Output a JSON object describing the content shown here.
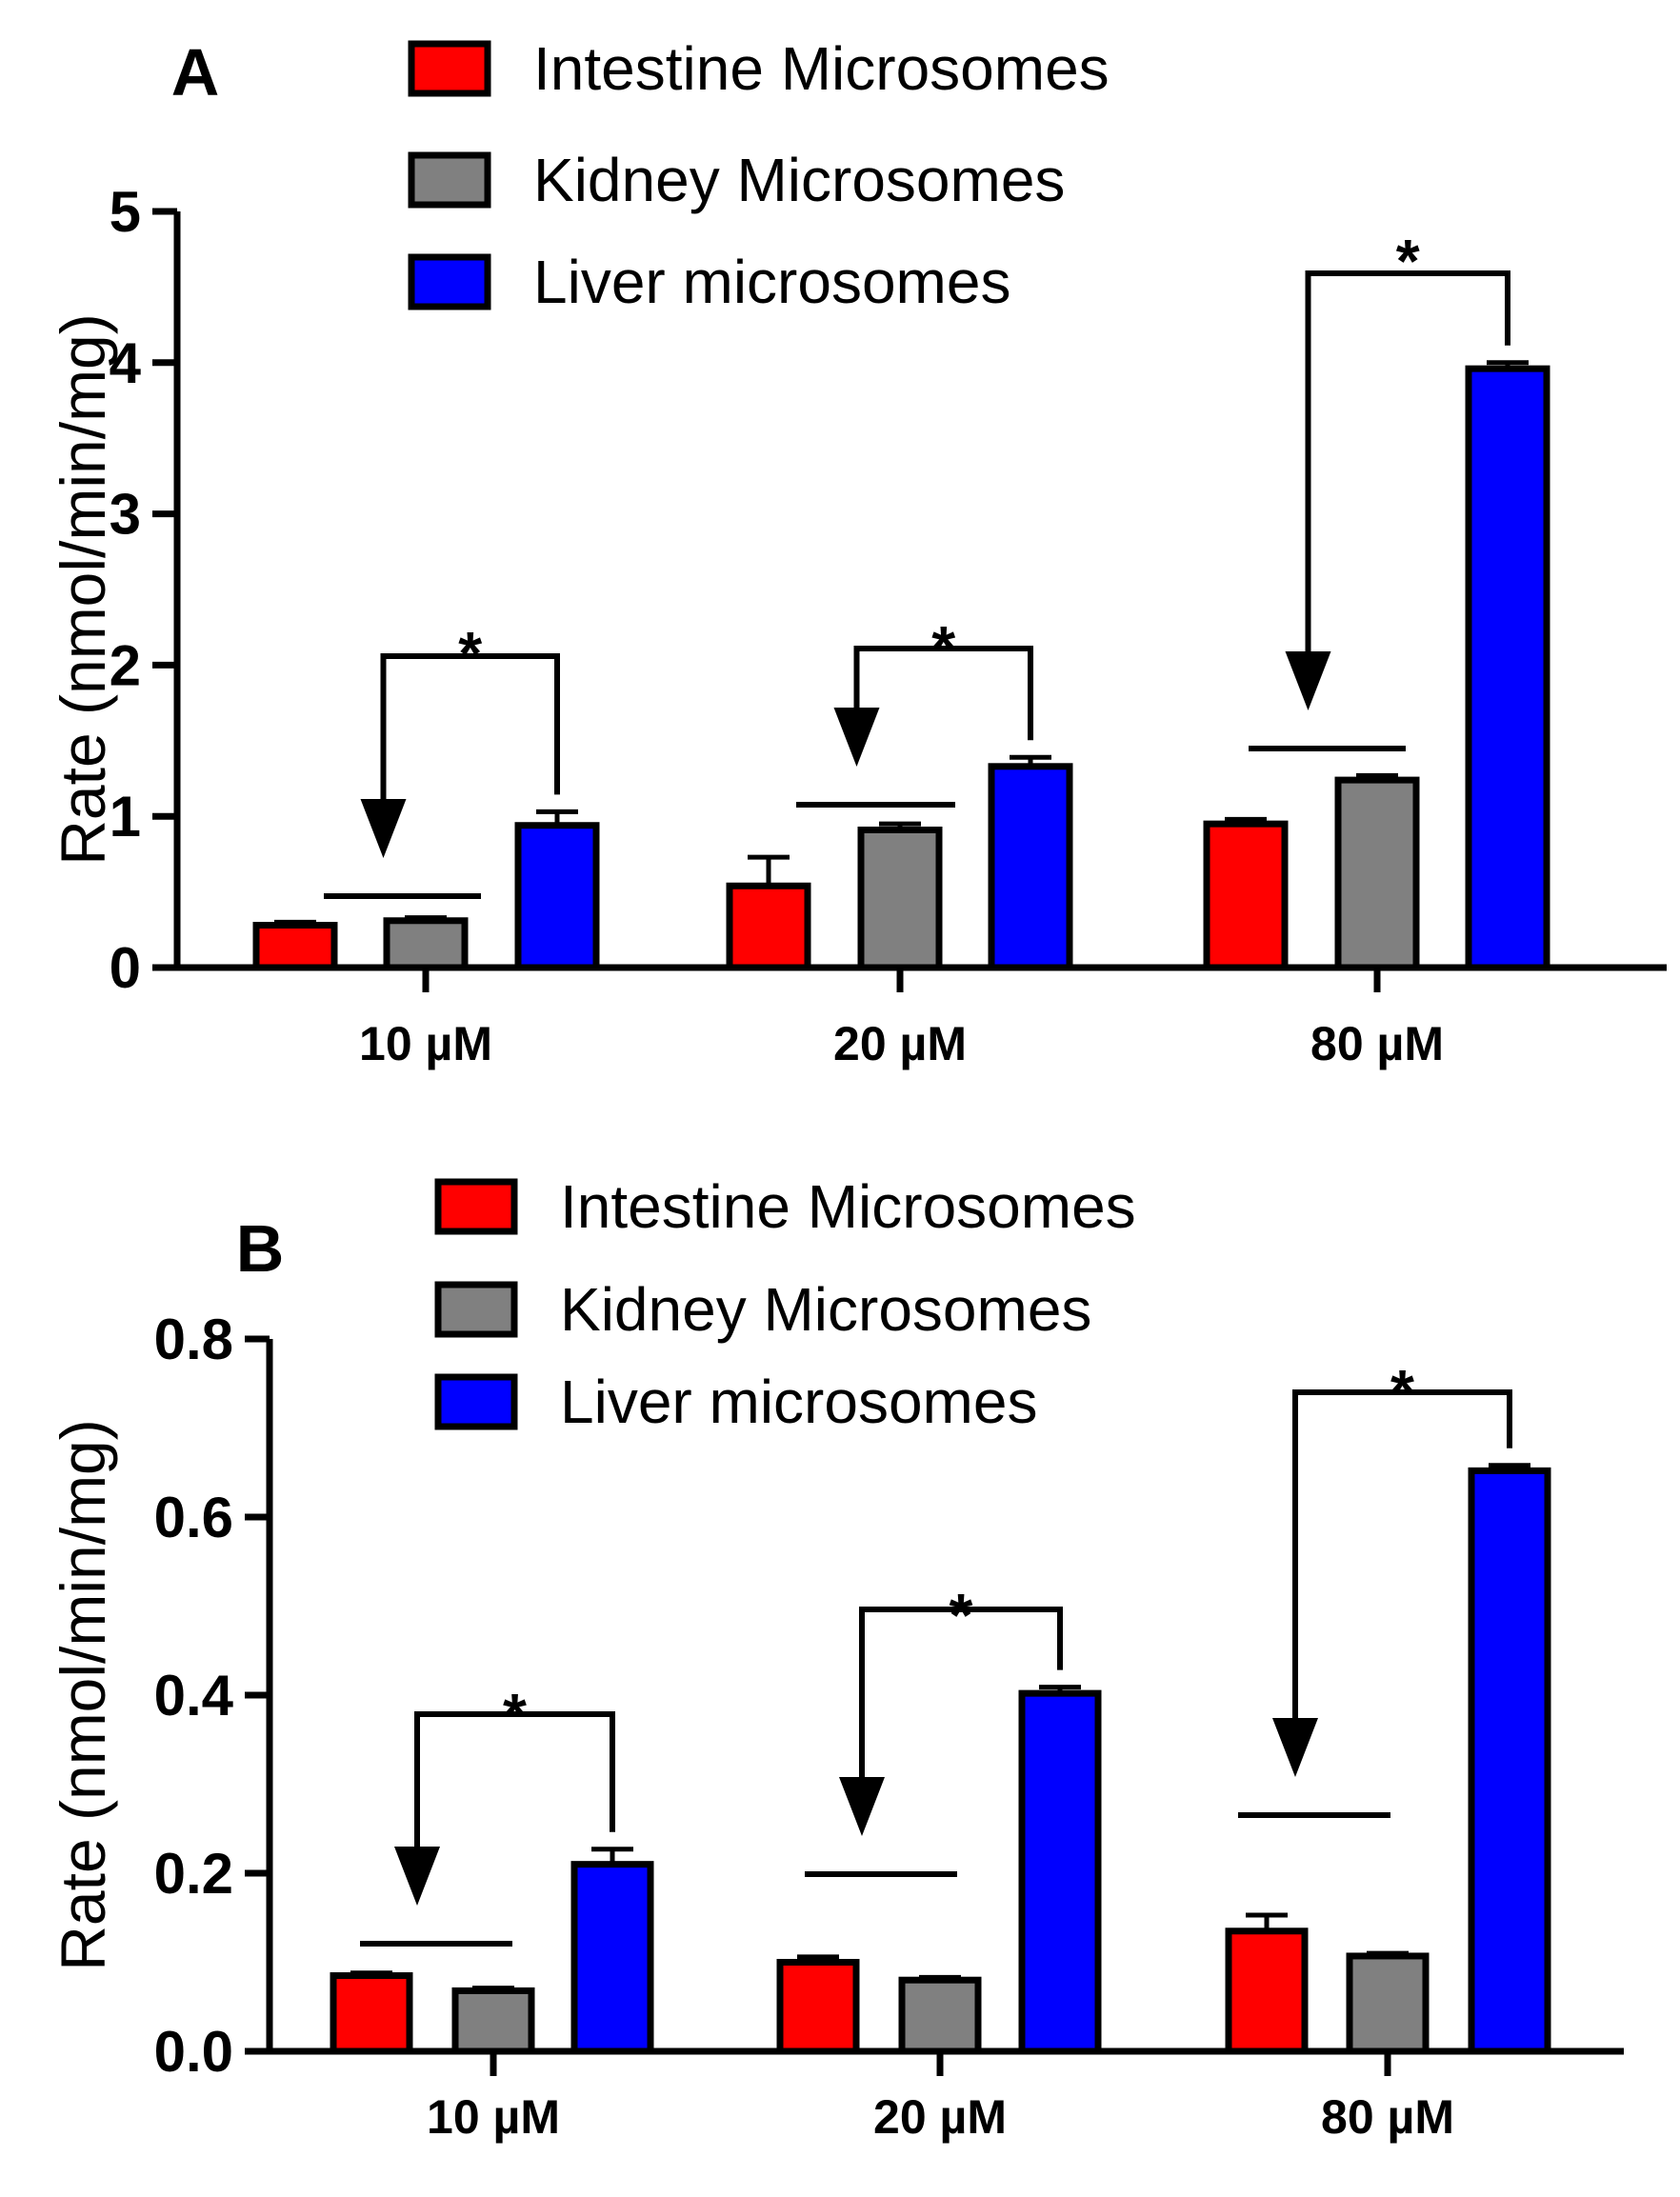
{
  "figure": {
    "panels": [
      {
        "letter": "A",
        "legend": [
          {
            "label": "Intestine Microsomes",
            "color": "#ff0000"
          },
          {
            "label": "Kidney Microsomes",
            "color": "#808080"
          },
          {
            "label": "Liver microsomes",
            "color": "#0000ff"
          }
        ],
        "ylabel": "Rate (nmol/min/mg)",
        "yticks": [
          {
            "value": 0,
            "label": "0"
          },
          {
            "value": 1,
            "label": "1"
          },
          {
            "value": 2,
            "label": "2"
          },
          {
            "value": 3,
            "label": "3"
          },
          {
            "value": 4,
            "label": "4"
          },
          {
            "value": 5,
            "label": "5"
          }
        ],
        "significance": [
          "*",
          "*",
          "*"
        ]
      },
      {
        "letter": "B",
        "legend": [
          {
            "label": "Intestine Microsomes",
            "color": "#ff0000"
          },
          {
            "label": "Kidney Microsomes",
            "color": "#808080"
          },
          {
            "label": "Liver microsomes",
            "color": "#0000ff"
          }
        ],
        "ylabel": "Rate (nmol/min/mg)",
        "yticks": [
          {
            "value": 0,
            "label": "0.0"
          },
          {
            "value": 0.2,
            "label": "0.2"
          },
          {
            "value": 0.4,
            "label": "0.4"
          },
          {
            "value": 0.6,
            "label": "0.6"
          },
          {
            "value": 0.8,
            "label": "0.8"
          }
        ],
        "significance": [
          "*",
          "*",
          "*"
        ]
      }
    ]
  },
  "chart_data": [
    {
      "type": "bar",
      "panel": "A",
      "categories": [
        "10 µM",
        "20 µM",
        "80 µM"
      ],
      "ylabel": "Rate (nmol/min/mg)",
      "ylim": [
        0,
        5
      ],
      "grid": false,
      "legend_position": "top",
      "series": [
        {
          "name": "Intestine Microsomes",
          "values": [
            0.28,
            0.54,
            0.95
          ],
          "error": [
            0.02,
            0.19,
            0.03
          ]
        },
        {
          "name": "Kidney Microsomes",
          "values": [
            0.31,
            0.91,
            1.24
          ],
          "error": [
            0.02,
            0.04,
            0.03
          ]
        },
        {
          "name": "Liver microsomes",
          "values": [
            0.94,
            1.33,
            3.96
          ],
          "error": [
            0.09,
            0.06,
            0.04
          ]
        }
      ]
    },
    {
      "type": "bar",
      "panel": "B",
      "categories": [
        "10 µM",
        "20 µM",
        "80 µM"
      ],
      "ylabel": "Rate (nmol/min/mg)",
      "ylim": [
        0,
        0.8
      ],
      "grid": false,
      "legend_position": "top",
      "series": [
        {
          "name": "Intestine Microsomes",
          "values": [
            0.085,
            0.1,
            0.135
          ],
          "error": [
            0.003,
            0.006,
            0.018
          ]
        },
        {
          "name": "Kidney Microsomes",
          "values": [
            0.068,
            0.08,
            0.107
          ],
          "error": [
            0.003,
            0.003,
            0.003
          ]
        },
        {
          "name": "Liver microsomes",
          "values": [
            0.21,
            0.402,
            0.652
          ],
          "error": [
            0.017,
            0.007,
            0.006
          ]
        }
      ]
    }
  ]
}
